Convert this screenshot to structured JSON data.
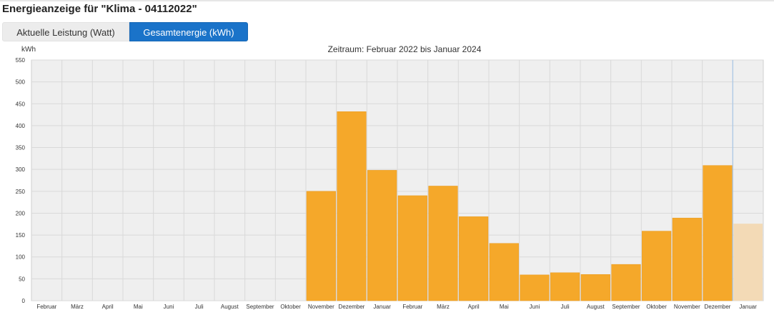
{
  "page": {
    "title": "Energieanzeige für \"Klima - 04112022\""
  },
  "tabs": [
    {
      "label": "Aktuelle Leistung (Watt)",
      "active": false
    },
    {
      "label": "Gesamtenergie (kWh)",
      "active": true
    }
  ],
  "colors": {
    "accent": "#1a73c9",
    "bar": "#f5a82a",
    "bar_partial": "#f3dab6",
    "plot_bg": "#efefef",
    "grid": "#d9d9d9"
  },
  "chart_data": {
    "type": "bar",
    "title": "Zeitraum: Februar 2022 bis Januar 2024",
    "ylabel": "kWh",
    "ylim": [
      0,
      550
    ],
    "yticks": [
      0,
      50,
      100,
      150,
      200,
      250,
      300,
      350,
      400,
      450,
      500,
      550
    ],
    "grid": true,
    "categories": [
      "Februar",
      "März",
      "April",
      "Mai",
      "Juni",
      "Juli",
      "August",
      "September",
      "Oktober",
      "November",
      "Dezember",
      "Januar",
      "Februar",
      "März",
      "April",
      "Mai",
      "Juni",
      "Juli",
      "August",
      "September",
      "Oktober",
      "November",
      "Dezember",
      "Januar"
    ],
    "values": [
      0,
      0,
      0,
      0,
      0,
      0,
      0,
      0,
      0,
      250,
      432,
      298,
      240,
      262,
      192,
      131,
      59,
      64,
      60,
      83,
      159,
      189,
      309,
      176
    ],
    "partial_last": true
  }
}
